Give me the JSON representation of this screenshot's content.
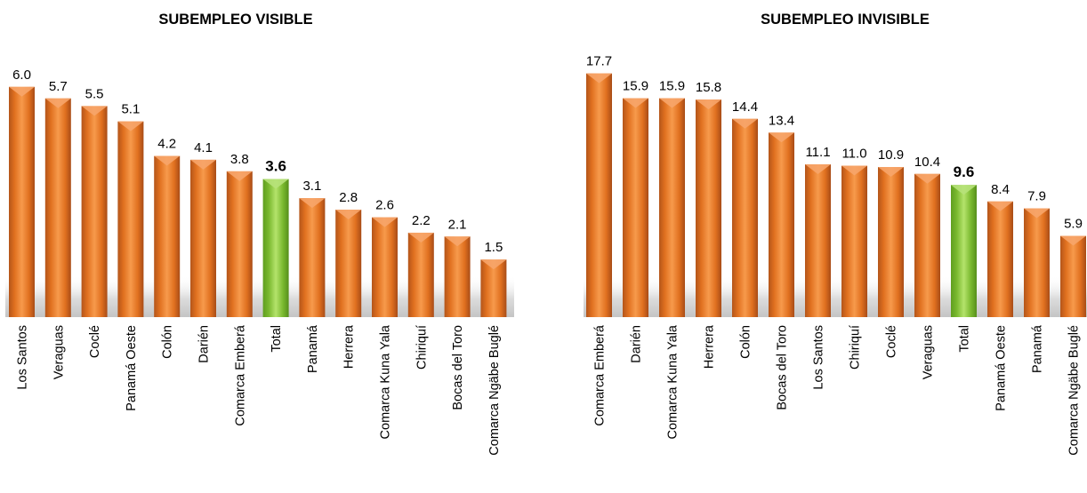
{
  "chart_data": [
    {
      "type": "bar",
      "title": "SUBEMPLEO VISIBLE",
      "categories": [
        "Los Santos",
        "Veraguas",
        "Coclé",
        "Panamá Oeste",
        "Colón",
        "Darién",
        "Comarca Emberá",
        "Total",
        "Panamá",
        "Herrera",
        "Comarca Kuna Yala",
        "Chiriquí",
        "Bocas del Toro",
        "Comarca Ngäbe Buglé"
      ],
      "values": [
        6.0,
        5.7,
        5.5,
        5.1,
        4.2,
        4.1,
        3.8,
        3.6,
        3.1,
        2.8,
        2.6,
        2.2,
        2.1,
        1.5
      ],
      "labels": [
        "6.0",
        "5.7",
        "5.5",
        "5.1",
        "4.2",
        "4.1",
        "3.8",
        "3.6",
        "3.1",
        "2.8",
        "2.6",
        "2.2",
        "2.1",
        "1.5"
      ],
      "highlight_category": "Total",
      "colors": {
        "bar": "#e87a2a",
        "highlight": "#8cc63f"
      }
    },
    {
      "type": "bar",
      "title": "SUBEMPLEO INVISIBLE",
      "categories": [
        "Comarca Emberá",
        "Darién",
        "Comarca Kuna Yala",
        "Herrera",
        "Colón",
        "Bocas del Toro",
        "Los Santos",
        "Chiriquí",
        "Coclé",
        "Veraguas",
        "Total",
        "Panamá Oeste",
        "Panamá",
        "Comarca Ngäbe Buglé"
      ],
      "values": [
        17.7,
        15.9,
        15.9,
        15.8,
        14.4,
        13.4,
        11.1,
        11.0,
        10.9,
        10.4,
        9.6,
        8.4,
        7.9,
        5.9
      ],
      "labels": [
        "17.7",
        "15.9",
        "15.9",
        "15.8",
        "14.4",
        "13.4",
        "11.1",
        "11.0",
        "10.9",
        "10.4",
        "9.6",
        "8.4",
        "7.9",
        "5.9"
      ],
      "highlight_category": "Total",
      "colors": {
        "bar": "#e87a2a",
        "highlight": "#8cc63f"
      }
    }
  ]
}
